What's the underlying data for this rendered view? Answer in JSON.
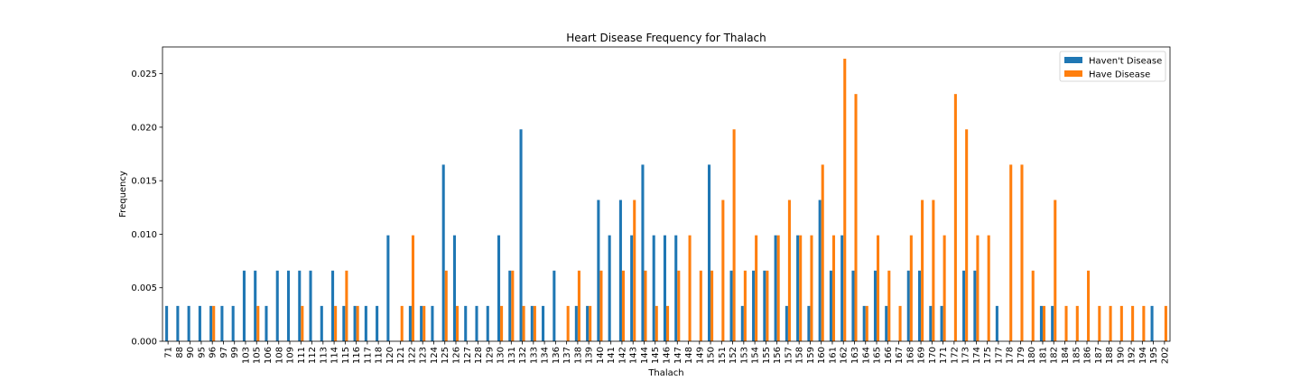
{
  "chart_data": {
    "type": "bar",
    "title": "Heart Disease Frequency for Thalach",
    "xlabel": "Thalach",
    "ylabel": "Frequency",
    "ylim": [
      0,
      0.0275
    ],
    "yticks": [
      "0.000",
      "0.005",
      "0.010",
      "0.015",
      "0.020",
      "0.025"
    ],
    "ytick_values": [
      0,
      0.005,
      0.01,
      0.015,
      0.02,
      0.025
    ],
    "legend_position": "top-right",
    "grid": false,
    "categories": [
      "71",
      "88",
      "90",
      "95",
      "96",
      "97",
      "99",
      "103",
      "105",
      "106",
      "108",
      "109",
      "111",
      "112",
      "113",
      "114",
      "115",
      "116",
      "117",
      "118",
      "120",
      "121",
      "122",
      "123",
      "124",
      "125",
      "126",
      "127",
      "128",
      "129",
      "130",
      "131",
      "132",
      "133",
      "134",
      "136",
      "137",
      "138",
      "139",
      "140",
      "141",
      "142",
      "143",
      "144",
      "145",
      "146",
      "147",
      "148",
      "149",
      "150",
      "151",
      "152",
      "153",
      "154",
      "155",
      "156",
      "157",
      "158",
      "159",
      "160",
      "161",
      "162",
      "163",
      "164",
      "165",
      "166",
      "167",
      "168",
      "169",
      "170",
      "171",
      "172",
      "173",
      "174",
      "175",
      "177",
      "178",
      "179",
      "180",
      "181",
      "182",
      "184",
      "185",
      "186",
      "187",
      "188",
      "190",
      "192",
      "194",
      "195",
      "202"
    ],
    "series": [
      {
        "name": "Haven't Disease",
        "color": "#1f77b4",
        "values": [
          0.0033,
          0.0033,
          0.0033,
          0.0033,
          0.0033,
          0.0033,
          0.0033,
          0.0066,
          0.0066,
          0.0033,
          0.0066,
          0.0066,
          0.0066,
          0.0066,
          0.0033,
          0.0066,
          0.0033,
          0.0033,
          0.0033,
          0.0033,
          0.0099,
          0,
          0.0033,
          0.0033,
          0.0033,
          0.0165,
          0.0099,
          0.0033,
          0.0033,
          0.0033,
          0.0099,
          0.0066,
          0.0198,
          0.0033,
          0.0033,
          0.0066,
          0,
          0.0033,
          0.0033,
          0.0132,
          0.0099,
          0.0132,
          0.0099,
          0.0165,
          0.0099,
          0.0099,
          0.0099,
          0,
          0,
          0.0165,
          0,
          0.0066,
          0.0033,
          0.0066,
          0.0066,
          0.0099,
          0.0033,
          0.0099,
          0.0033,
          0.0132,
          0.0066,
          0.0099,
          0.0066,
          0.0033,
          0.0066,
          0.0033,
          0,
          0.0066,
          0.0066,
          0.0033,
          0.0033,
          0,
          0.0066,
          0.0066,
          0,
          0.0033,
          0,
          0,
          0,
          0.0033,
          0.0033,
          0,
          0,
          0,
          0,
          0,
          0,
          0,
          0,
          0.0033,
          0
        ]
      },
      {
        "name": "Have Disease",
        "color": "#ff7f0e",
        "values": [
          0,
          0,
          0,
          0,
          0.0033,
          0,
          0,
          0,
          0.0033,
          0,
          0,
          0,
          0.0033,
          0,
          0,
          0.0033,
          0.0066,
          0.0033,
          0,
          0,
          0,
          0.0033,
          0.0099,
          0.0033,
          0,
          0.0066,
          0.0033,
          0,
          0,
          0,
          0.0033,
          0.0066,
          0.0033,
          0.0033,
          0,
          0,
          0.0033,
          0.0066,
          0.0033,
          0.0066,
          0,
          0.0066,
          0.0132,
          0.0066,
          0.0033,
          0.0033,
          0.0066,
          0.0099,
          0.0066,
          0.0066,
          0.0132,
          0.0198,
          0.0066,
          0.0099,
          0.0066,
          0.0099,
          0.0132,
          0.0099,
          0.0099,
          0.0165,
          0.0099,
          0.0264,
          0.0231,
          0.0033,
          0.0099,
          0.0066,
          0.0033,
          0.0099,
          0.0132,
          0.0132,
          0.0099,
          0.0231,
          0.0198,
          0.0099,
          0.0099,
          0,
          0.0165,
          0.0165,
          0.0066,
          0.0033,
          0.0132,
          0.0033,
          0.0033,
          0.0066,
          0.0033,
          0.0033,
          0.0033,
          0.0033,
          0.0033,
          0,
          0.0033
        ]
      }
    ]
  }
}
